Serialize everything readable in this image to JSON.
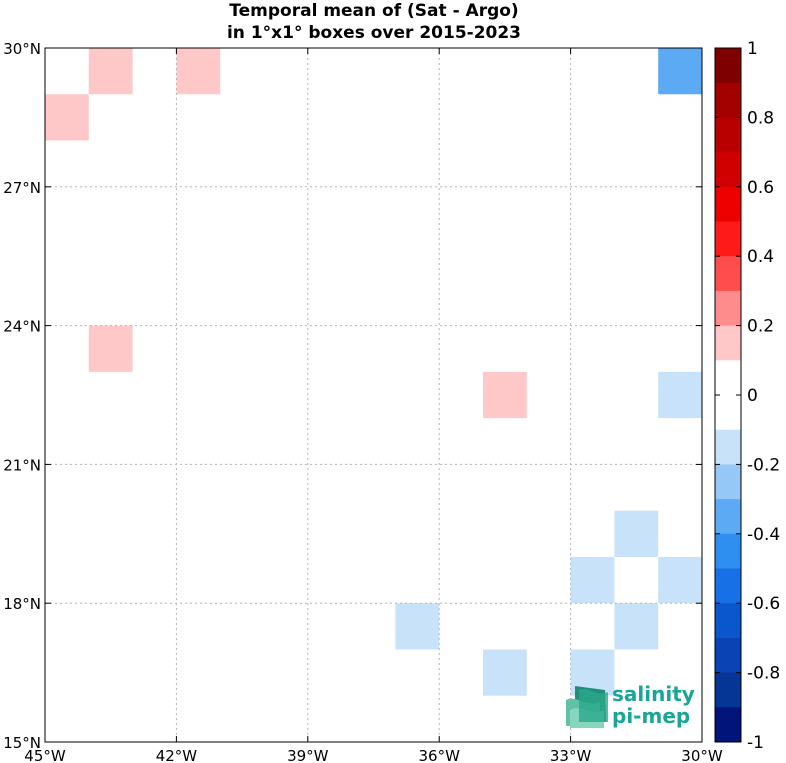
{
  "chart_data": {
    "type": "heatmap",
    "title": [
      "Temporal mean of (Sat - Argo)",
      "in 1°x1° boxes over 2015-2023"
    ],
    "xlim": [
      -45,
      -30
    ],
    "ylim": [
      15,
      30
    ],
    "x_ticks": [
      -45,
      -42,
      -39,
      -36,
      -33,
      -30
    ],
    "x_tick_labels": [
      "45°W",
      "42°W",
      "39°W",
      "36°W",
      "33°W",
      "30°W"
    ],
    "y_ticks": [
      15,
      18,
      21,
      24,
      27,
      30
    ],
    "y_tick_labels": [
      "15°N",
      "18°N",
      "21°N",
      "24°N",
      "27°N",
      "30°N"
    ],
    "grid": true,
    "colorbar": {
      "range": [
        -1,
        1
      ],
      "ticks": [
        1,
        0.8,
        0.6,
        0.4,
        0.2,
        0,
        -0.2,
        -0.4,
        -0.6,
        -0.8,
        -1
      ],
      "tick_labels": [
        "1",
        "0.8",
        "0.6",
        "0.4",
        "0.2",
        "0",
        "-0.2",
        "-0.4",
        "-0.6",
        "-0.8",
        "-1"
      ],
      "colors_top_to_bottom": [
        "#7f0000",
        "#a30000",
        "#b90000",
        "#d10000",
        "#ec0000",
        "#ff1a1a",
        "#ff4d4d",
        "#ff8c8c",
        "#ffc8c8",
        "#ffffff",
        "#ffffff",
        "#c8e2fa",
        "#96c8f7",
        "#5caaf3",
        "#2f8ff0",
        "#1870e6",
        "#0a56cc",
        "#0a43b3",
        "#053595",
        "#00147a"
      ]
    },
    "cells": [
      {
        "lon": -44,
        "lat": 29,
        "value": 0.15
      },
      {
        "lon": -42,
        "lat": 29,
        "value": 0.15
      },
      {
        "lon": -45,
        "lat": 28,
        "value": 0.15
      },
      {
        "lon": -31,
        "lat": 29,
        "value": -0.35
      },
      {
        "lon": -44,
        "lat": 23,
        "value": 0.15
      },
      {
        "lon": -35,
        "lat": 22,
        "value": 0.15
      },
      {
        "lon": -31,
        "lat": 22,
        "value": -0.15
      },
      {
        "lon": -32,
        "lat": 19,
        "value": -0.15
      },
      {
        "lon": -33,
        "lat": 18,
        "value": -0.15
      },
      {
        "lon": -31,
        "lat": 18,
        "value": -0.15
      },
      {
        "lon": -37,
        "lat": 17,
        "value": -0.15
      },
      {
        "lon": -32,
        "lat": 17,
        "value": -0.15
      },
      {
        "lon": -35,
        "lat": 16,
        "value": -0.15
      },
      {
        "lon": -33,
        "lat": 16,
        "value": -0.15
      }
    ]
  },
  "logo": {
    "line1": "salinity",
    "line2": "pi-mep"
  }
}
